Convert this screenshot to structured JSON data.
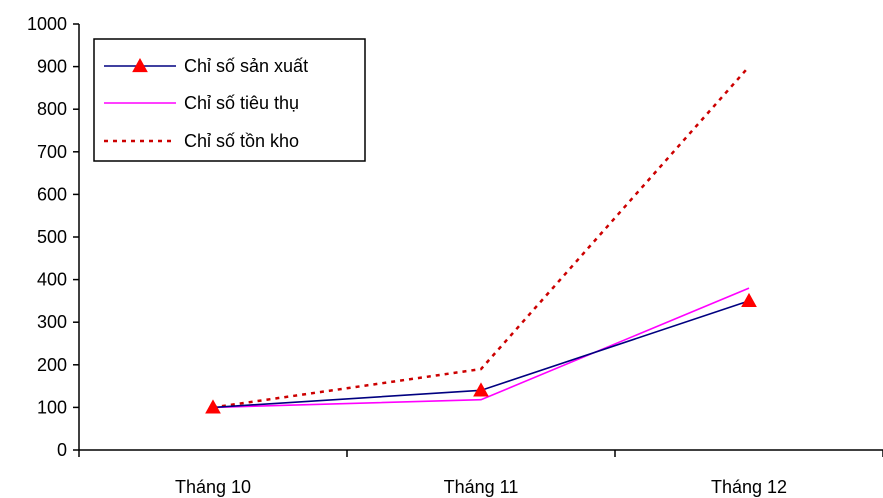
{
  "chart_data": {
    "type": "line",
    "categories": [
      "Tháng 10",
      "Tháng 11",
      "Tháng 12"
    ],
    "ylim": [
      0,
      1000
    ],
    "yticks": [
      0,
      100,
      200,
      300,
      400,
      500,
      600,
      700,
      800,
      900,
      1000
    ],
    "grid": false,
    "legend_position": "top-left",
    "series": [
      {
        "name": "Chỉ số sản xuất",
        "values": [
          100,
          140,
          350
        ],
        "color": "#000080",
        "line_style": "solid",
        "marker": "triangle",
        "marker_color": "#ff0000"
      },
      {
        "name": "Chỉ số tiêu thụ",
        "values": [
          100,
          118,
          380
        ],
        "color": "#ff00ff",
        "line_style": "solid",
        "marker": "none"
      },
      {
        "name": "Chỉ số tồn kho",
        "values": [
          100,
          190,
          900
        ],
        "color": "#cc0000",
        "line_style": "dotted",
        "marker": "none"
      }
    ]
  }
}
